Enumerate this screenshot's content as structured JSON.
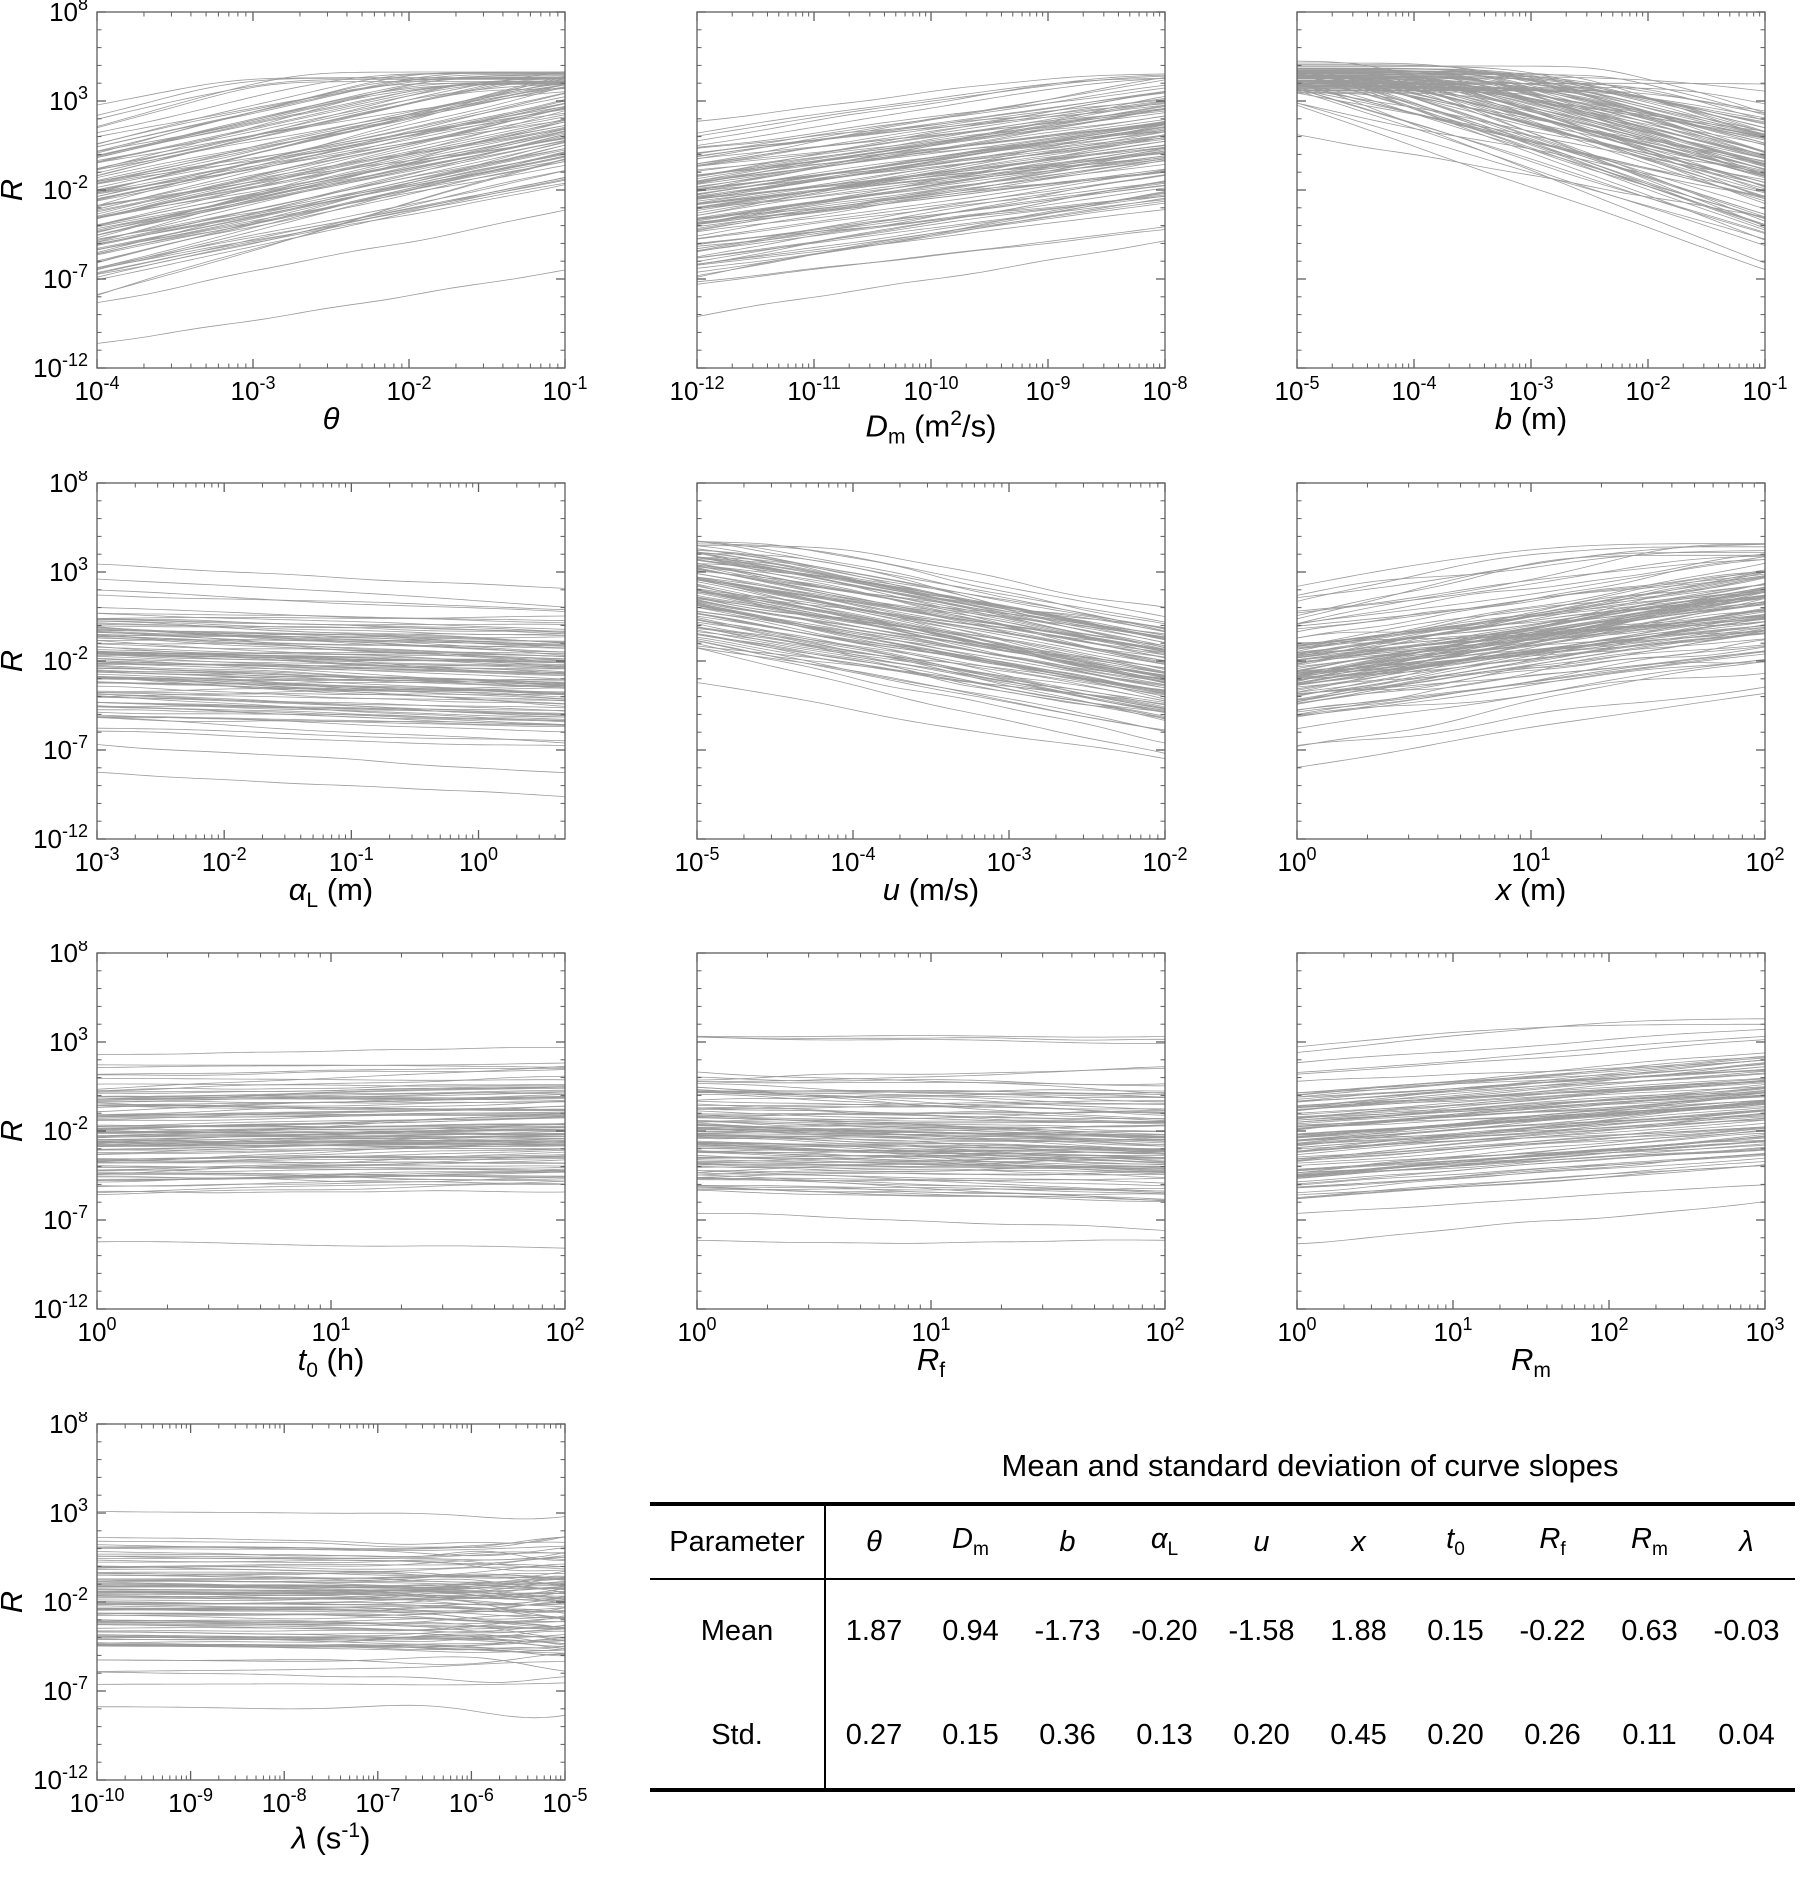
{
  "figure": {
    "background": "#ffffff",
    "curve_color": "#919191",
    "axis_color": "#5f5f5f",
    "text_color": "#000000",
    "ylabel": "R",
    "y_tick_exponents": [
      8,
      3,
      -2,
      -7,
      -12
    ],
    "y_log_range": [
      -12,
      8
    ]
  },
  "chart_data": [
    {
      "type": "line",
      "id": "theta",
      "xlabel_html": "<i>θ</i>",
      "x_log_range": [
        -4,
        -1
      ],
      "x_tick_exponents": [
        -4,
        -3,
        -2,
        -1
      ],
      "y_log_range": [
        -12,
        8
      ],
      "y_tick_exponents": [
        8,
        3,
        -2,
        -7,
        -12
      ],
      "ylabel": "R",
      "show_y_labels": true,
      "slope_mean": 1.87,
      "slope_std": 0.27,
      "n_curves": 115,
      "level_center": -3.2,
      "level_spread": 4.6,
      "cap_center": 4.4,
      "cap_spread": 0.35,
      "wiggle": 0.05,
      "wiggle_ramp": false,
      "seed": 3
    },
    {
      "type": "line",
      "id": "Dm",
      "xlabel_html": "<i>D</i><sub>m</sub> (m<sup>2</sup>/s)",
      "x_log_range": [
        -12,
        -8
      ],
      "x_tick_exponents": [
        -12,
        -11,
        -10,
        -9,
        -8
      ],
      "y_log_range": [
        -12,
        8
      ],
      "y_tick_exponents": [
        8,
        3,
        -2,
        -7,
        -12
      ],
      "ylabel": "R",
      "show_y_labels": false,
      "slope_mean": 0.94,
      "slope_std": 0.15,
      "n_curves": 115,
      "level_center": -2.6,
      "level_spread": 4.0,
      "cap_center": 4.45,
      "cap_spread": 0.3,
      "wiggle": 0.05,
      "wiggle_ramp": false,
      "seed": 7
    },
    {
      "type": "line",
      "id": "b",
      "xlabel_html": "<i>b</i> (m)",
      "x_log_range": [
        -5,
        -1
      ],
      "x_tick_exponents": [
        -5,
        -4,
        -3,
        -2,
        -1
      ],
      "y_log_range": [
        -12,
        8
      ],
      "y_tick_exponents": [
        8,
        3,
        -2,
        -7,
        -12
      ],
      "ylabel": "R",
      "show_y_labels": false,
      "slope_mean": -1.73,
      "slope_std": 0.36,
      "n_curves": 115,
      "level_center": 6.3,
      "level_spread": 3.2,
      "cap_center": 4.35,
      "cap_spread": 0.45,
      "wiggle": 0.05,
      "wiggle_ramp": false,
      "seed": 11
    },
    {
      "type": "line",
      "id": "alphaL",
      "xlabel_html": "<i>α</i><sub>L</sub> (m)",
      "x_log_range": [
        -3,
        0.68
      ],
      "x_tick_exponents": [
        -3,
        -2,
        -1,
        0
      ],
      "y_log_range": [
        -12,
        8
      ],
      "y_tick_exponents": [
        8,
        3,
        -2,
        -7,
        -12
      ],
      "ylabel": "R",
      "show_y_labels": true,
      "slope_mean": -0.2,
      "slope_std": 0.13,
      "n_curves": 115,
      "level_center": -1.9,
      "level_spread": 3.9,
      "cap_center": 5.0,
      "cap_spread": 0.3,
      "wiggle": 0.05,
      "wiggle_ramp": false,
      "seed": 13
    },
    {
      "type": "line",
      "id": "u",
      "xlabel_html": "<i>u</i> (m/s)",
      "x_log_range": [
        -5,
        -2
      ],
      "x_tick_exponents": [
        -5,
        -4,
        -3,
        -2
      ],
      "y_log_range": [
        -12,
        8
      ],
      "y_tick_exponents": [
        8,
        3,
        -2,
        -7,
        -12
      ],
      "ylabel": "R",
      "show_y_labels": false,
      "slope_mean": -1.58,
      "slope_std": 0.2,
      "n_curves": 115,
      "level_center": 2.2,
      "level_spread": 3.4,
      "cap_center": 4.3,
      "cap_spread": 0.4,
      "wiggle": 0.1,
      "wiggle_ramp": false,
      "seed": 17
    },
    {
      "type": "line",
      "id": "x",
      "xlabel_html": "<i>x</i> (m)",
      "x_log_range": [
        0,
        2
      ],
      "x_tick_exponents": [
        0,
        1,
        2
      ],
      "y_log_range": [
        -12,
        8
      ],
      "y_tick_exponents": [
        8,
        3,
        -2,
        -7,
        -12
      ],
      "ylabel": "R",
      "show_y_labels": false,
      "slope_mean": 1.88,
      "slope_std": 0.45,
      "n_curves": 115,
      "level_center": -2.4,
      "level_spread": 3.4,
      "cap_center": 4.35,
      "cap_spread": 0.4,
      "wiggle": 0.12,
      "wiggle_ramp": false,
      "seed": 19
    },
    {
      "type": "line",
      "id": "t0",
      "xlabel_html": "<i>t</i><sub>0</sub> (h)",
      "x_log_range": [
        0,
        2
      ],
      "x_tick_exponents": [
        0,
        1,
        2
      ],
      "y_log_range": [
        -12,
        8
      ],
      "y_tick_exponents": [
        8,
        3,
        -2,
        -7,
        -12
      ],
      "ylabel": "R",
      "show_y_labels": true,
      "slope_mean": 0.15,
      "slope_std": 0.2,
      "n_curves": 115,
      "level_center": -1.9,
      "level_spread": 3.9,
      "cap_center": 5.0,
      "cap_spread": 0.3,
      "wiggle": 0.04,
      "wiggle_ramp": false,
      "seed": 23
    },
    {
      "type": "line",
      "id": "Rf",
      "xlabel_html": "<i>R</i><sub>f</sub>",
      "x_log_range": [
        0,
        2
      ],
      "x_tick_exponents": [
        0,
        1,
        2
      ],
      "y_log_range": [
        -12,
        8
      ],
      "y_tick_exponents": [
        8,
        3,
        -2,
        -7,
        -12
      ],
      "ylabel": "R",
      "show_y_labels": false,
      "slope_mean": -0.22,
      "slope_std": 0.26,
      "n_curves": 115,
      "level_center": -1.9,
      "level_spread": 3.9,
      "cap_center": 4.4,
      "cap_spread": 0.3,
      "wiggle": 0.06,
      "wiggle_ramp": false,
      "seed": 29
    },
    {
      "type": "line",
      "id": "Rm",
      "xlabel_html": "<i>R</i><sub>m</sub>",
      "x_log_range": [
        0,
        3
      ],
      "x_tick_exponents": [
        0,
        1,
        2,
        3
      ],
      "y_log_range": [
        -12,
        8
      ],
      "y_tick_exponents": [
        8,
        3,
        -2,
        -7,
        -12
      ],
      "ylabel": "R",
      "show_y_labels": false,
      "slope_mean": 0.63,
      "slope_std": 0.11,
      "n_curves": 115,
      "level_center": -2.3,
      "level_spread": 3.7,
      "cap_center": 4.6,
      "cap_spread": 0.3,
      "wiggle": 0.05,
      "wiggle_ramp": false,
      "seed": 31
    },
    {
      "type": "line",
      "id": "lambda",
      "xlabel_html": "<i>λ</i> (s<sup>-1</sup>)",
      "x_log_range": [
        -10,
        -5
      ],
      "x_tick_exponents": [
        -10,
        -9,
        -8,
        -7,
        -6,
        -5
      ],
      "y_log_range": [
        -12,
        8
      ],
      "y_tick_exponents": [
        8,
        3,
        -2,
        -7,
        -12
      ],
      "ylabel": "R",
      "show_y_labels": true,
      "slope_mean": -0.03,
      "slope_std": 0.04,
      "n_curves": 115,
      "level_center": -1.9,
      "level_spread": 3.7,
      "cap_center": 5.0,
      "cap_spread": 0.3,
      "wiggle": 0.14,
      "wiggle_ramp": true,
      "seed": 37
    }
  ],
  "table": {
    "title": "Mean and standard deviation of curve slopes",
    "corner_header": "Parameter",
    "params_html": [
      "<i>θ</i>",
      "<i>D</i><sub>m</sub>",
      "<i>b</i>",
      "<i>α</i><sub>L</sub>",
      "<i>u</i>",
      "<i>x</i>",
      "<i>t</i><sub>0</sub>",
      "<i>R</i><sub>f</sub>",
      "<i>R</i><sub>m</sub>",
      "<i>λ</i>"
    ],
    "rows": [
      {
        "label": "Mean",
        "values": [
          "1.87",
          "0.94",
          "-1.73",
          "-0.20",
          "-1.58",
          "1.88",
          "0.15",
          "-0.22",
          "0.63",
          "-0.03"
        ]
      },
      {
        "label": "Std.",
        "values": [
          "0.27",
          "0.15",
          "0.36",
          "0.13",
          "0.20",
          "0.45",
          "0.20",
          "0.26",
          "0.11",
          "0.04"
        ]
      }
    ]
  }
}
